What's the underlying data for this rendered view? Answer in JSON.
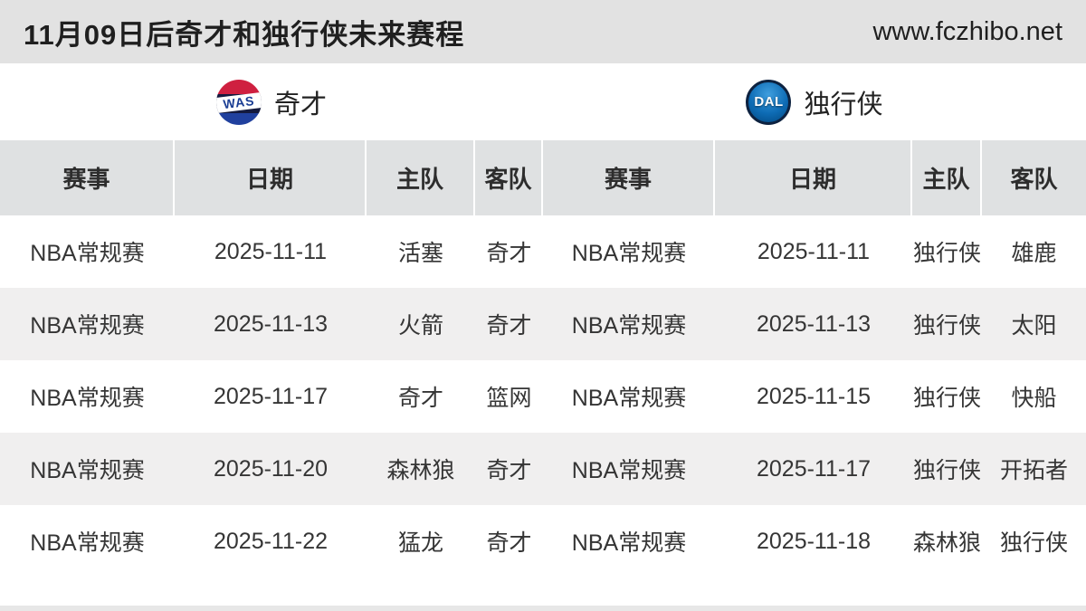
{
  "page": {
    "title": "11月09日后奇才和独行侠未来赛程",
    "site": "www.fczhibo.net"
  },
  "teams": [
    {
      "abbr": "WAS",
      "name": "奇才"
    },
    {
      "abbr": "DAL",
      "name": "独行侠"
    }
  ],
  "table": {
    "headers": [
      "赛事",
      "日期",
      "主队",
      "客队"
    ],
    "left_rows": [
      {
        "event": "NBA常规赛",
        "date": "2025-11-11",
        "home": "活塞",
        "away": "奇才"
      },
      {
        "event": "NBA常规赛",
        "date": "2025-11-13",
        "home": "火箭",
        "away": "奇才"
      },
      {
        "event": "NBA常规赛",
        "date": "2025-11-17",
        "home": "奇才",
        "away": "篮网"
      },
      {
        "event": "NBA常规赛",
        "date": "2025-11-20",
        "home": "森林狼",
        "away": "奇才"
      },
      {
        "event": "NBA常规赛",
        "date": "2025-11-22",
        "home": "猛龙",
        "away": "奇才"
      }
    ],
    "right_rows": [
      {
        "event": "NBA常规赛",
        "date": "2025-11-11",
        "home": "独行侠",
        "away": "雄鹿"
      },
      {
        "event": "NBA常规赛",
        "date": "2025-11-13",
        "home": "独行侠",
        "away": "太阳"
      },
      {
        "event": "NBA常规赛",
        "date": "2025-11-15",
        "home": "独行侠",
        "away": "快船"
      },
      {
        "event": "NBA常规赛",
        "date": "2025-11-17",
        "home": "独行侠",
        "away": "开拓者"
      },
      {
        "event": "NBA常规赛",
        "date": "2025-11-18",
        "home": "森林狼",
        "away": "独行侠"
      }
    ]
  },
  "colors": {
    "topbar_bg": "#e2e2e2",
    "table_header_bg": "#dfe1e2",
    "row_alt_bg": "#f0efef",
    "wizards_red": "#cf2040",
    "wizards_navy": "#141a3e",
    "mavericks_blue": "#0e6cb5"
  }
}
